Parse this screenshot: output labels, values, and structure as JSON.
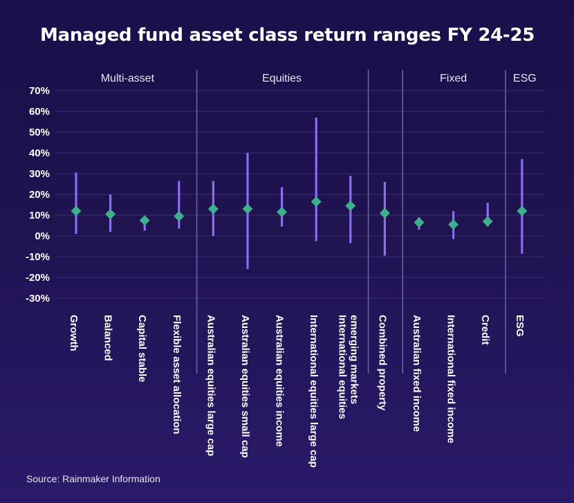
{
  "title": "Managed fund asset class return ranges FY 24-25",
  "source": "Source: Rainmaker Information",
  "colors": {
    "range_line": "#8b6cf5",
    "median_marker": "#3fae8c",
    "separator": "#6b5fa8",
    "grid": "#3b2f78"
  },
  "chart_data": {
    "type": "range",
    "title": "Managed fund asset class return ranges FY 24-25",
    "ylim": [
      -30,
      70
    ],
    "yticks": [
      "70%",
      "60%",
      "50%",
      "40%",
      "30%",
      "20%",
      "10%",
      "0%",
      "-10%",
      "-20%",
      "-30%"
    ],
    "ytick_values": [
      70,
      60,
      50,
      40,
      30,
      20,
      10,
      0,
      -10,
      -20,
      -30
    ],
    "groups": [
      {
        "name": "Multi-asset",
        "start": 0,
        "end": 3
      },
      {
        "name": "Equities",
        "start": 4,
        "end": 8
      },
      {
        "name": "",
        "start": 9,
        "end": 9
      },
      {
        "name": "Fixed",
        "start": 10,
        "end": 12
      },
      {
        "name": "ESG",
        "start": 13,
        "end": 13
      }
    ],
    "categories": [
      [
        "Growth"
      ],
      [
        "Balanced"
      ],
      [
        "Capital stable"
      ],
      [
        "Flexible asset allocation"
      ],
      [
        "Australian equities large cap"
      ],
      [
        "Australian equities small cap"
      ],
      [
        "Australian equities income"
      ],
      [
        "International equities large cap"
      ],
      [
        "International equities",
        "emerging markets"
      ],
      [
        "Combined property"
      ],
      [
        "Australian fixed income"
      ],
      [
        "International fixed income"
      ],
      [
        "Credit"
      ],
      [
        "ESG"
      ]
    ],
    "low": [
      1,
      2,
      2.5,
      3.5,
      0,
      -16,
      4.5,
      -2.5,
      -3.5,
      -9.5,
      3,
      -1.5,
      4.5,
      -8.5
    ],
    "high": [
      30.5,
      20,
      9,
      26.5,
      26.5,
      40,
      23.5,
      57,
      29,
      26,
      9,
      12,
      16,
      37
    ],
    "median": [
      12,
      10.5,
      7.5,
      9.5,
      13,
      13,
      11.5,
      16.5,
      14.5,
      11,
      6.5,
      5.5,
      7,
      12
    ],
    "grid": true,
    "legend": "none"
  }
}
